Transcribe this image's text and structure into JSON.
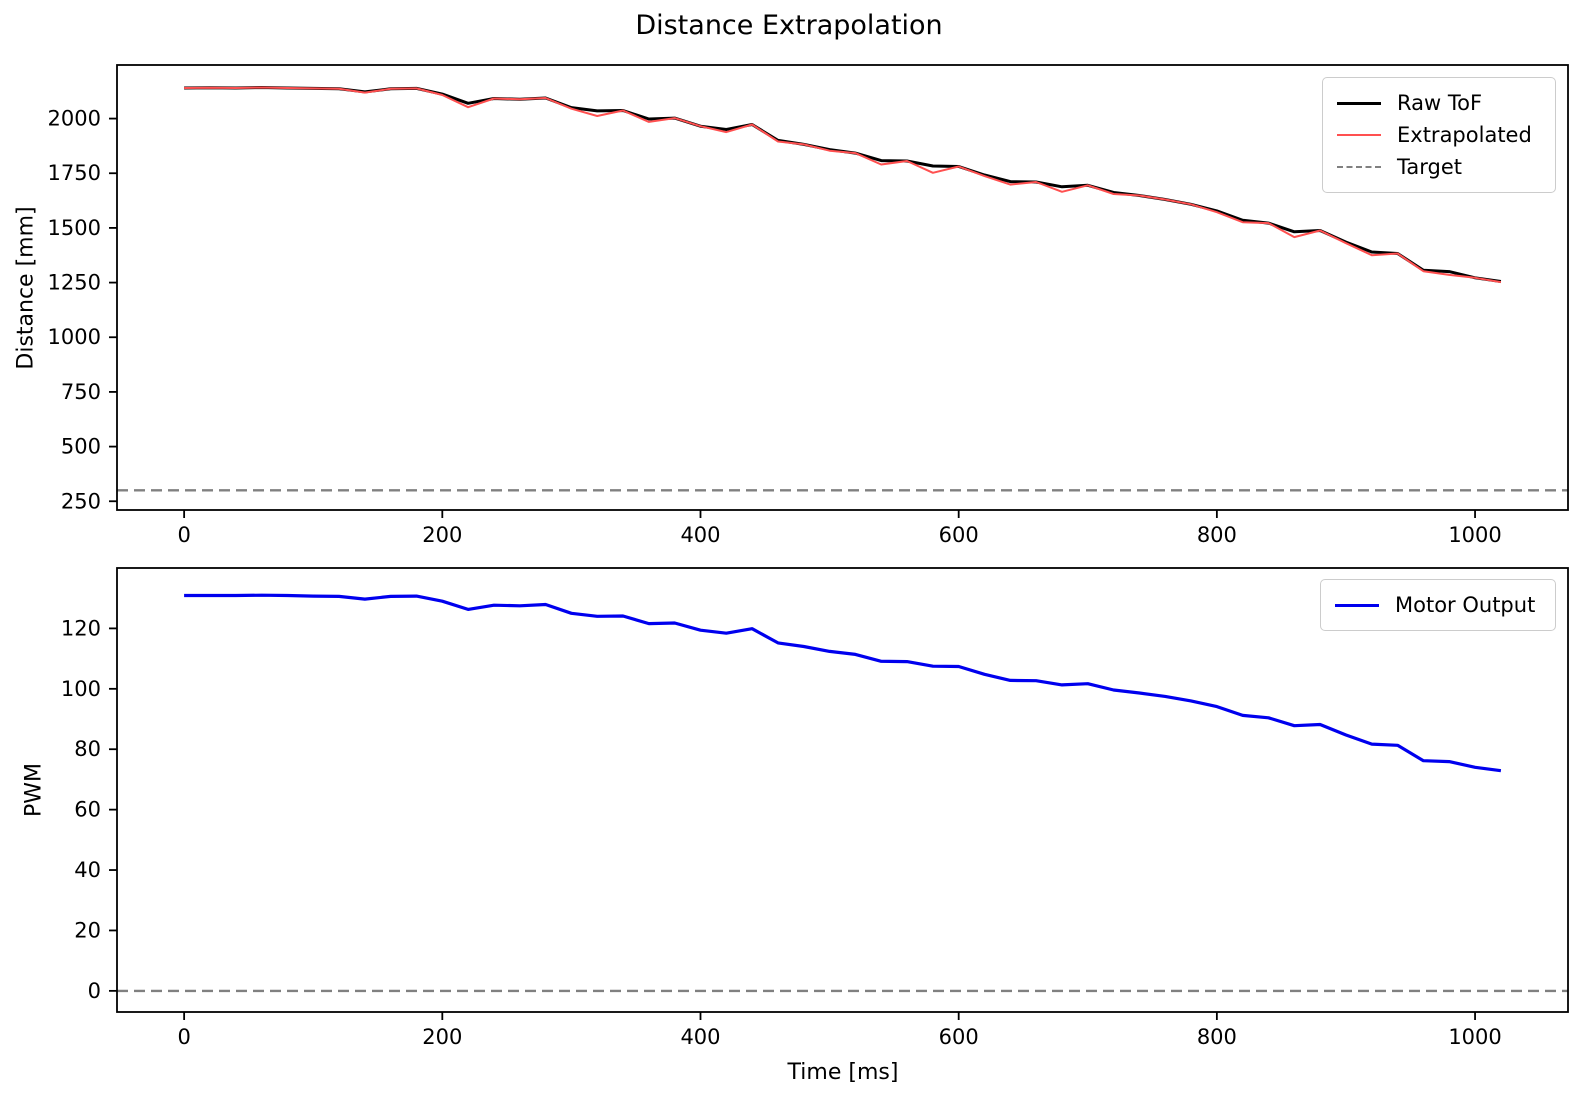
{
  "chart_data": [
    {
      "type": "line",
      "title": "Distance Extrapolation",
      "xlabel": "",
      "ylabel": "Distance [mm]",
      "xlim": [
        -52,
        1072
      ],
      "ylim": [
        210,
        2245
      ],
      "xticks": [
        0,
        200,
        400,
        600,
        800,
        1000
      ],
      "yticks": [
        250,
        500,
        750,
        1000,
        1250,
        1500,
        1750,
        2000
      ],
      "grid": false,
      "legend_position": "upper right",
      "x": [
        0,
        20,
        40,
        60,
        80,
        100,
        120,
        140,
        160,
        180,
        200,
        220,
        240,
        260,
        280,
        300,
        320,
        340,
        360,
        380,
        400,
        420,
        440,
        460,
        480,
        500,
        520,
        540,
        560,
        580,
        600,
        620,
        640,
        660,
        680,
        700,
        720,
        740,
        760,
        780,
        800,
        820,
        840,
        860,
        880,
        900,
        920,
        940,
        960,
        980,
        1000,
        1020
      ],
      "series": [
        {
          "name": "Raw ToF",
          "color": "#000000",
          "style": "solid",
          "width": 3,
          "in_legend": true,
          "values": [
            2140,
            2141,
            2140,
            2142,
            2140,
            2138,
            2136,
            2122,
            2136,
            2138,
            2112,
            2070,
            2092,
            2088,
            2094,
            2050,
            2035,
            2037,
            1998,
            2002,
            1965,
            1950,
            1973,
            1900,
            1882,
            1858,
            1842,
            1808,
            1806,
            1783,
            1781,
            1742,
            1712,
            1710,
            1688,
            1695,
            1662,
            1648,
            1630,
            1608,
            1578,
            1535,
            1522,
            1482,
            1488,
            1435,
            1390,
            1383,
            1306,
            1300,
            1272,
            1255
          ]
        },
        {
          "name": "Extrapolated",
          "color": "#ff5050",
          "style": "solid",
          "width": 2,
          "in_legend": true,
          "values": [
            2140,
            2141,
            2140,
            2142,
            2140,
            2138,
            2136,
            2119,
            2136,
            2138,
            2108,
            2052,
            2092,
            2088,
            2094,
            2045,
            2012,
            2037,
            1985,
            2002,
            1965,
            1938,
            1973,
            1895,
            1882,
            1853,
            1842,
            1790,
            1806,
            1752,
            1781,
            1737,
            1698,
            1710,
            1665,
            1695,
            1655,
            1648,
            1630,
            1608,
            1572,
            1526,
            1522,
            1458,
            1488,
            1430,
            1375,
            1383,
            1302,
            1285,
            1272,
            1252
          ]
        },
        {
          "name": "Target",
          "color": "#808080",
          "style": "dashed",
          "width": 2.4,
          "in_legend": true,
          "const": 300
        }
      ]
    },
    {
      "type": "line",
      "title": "",
      "xlabel": "Time [ms]",
      "ylabel": "PWM",
      "xlim": [
        -52,
        1072
      ],
      "ylim": [
        -7,
        140
      ],
      "xticks": [
        0,
        200,
        400,
        600,
        800,
        1000
      ],
      "yticks": [
        0,
        20,
        40,
        60,
        80,
        100,
        120
      ],
      "grid": false,
      "legend_position": "upper right",
      "x": [
        0,
        20,
        40,
        60,
        80,
        100,
        120,
        140,
        160,
        180,
        200,
        220,
        240,
        260,
        280,
        300,
        320,
        340,
        360,
        380,
        400,
        420,
        440,
        460,
        480,
        500,
        520,
        540,
        560,
        580,
        600,
        620,
        640,
        660,
        680,
        700,
        720,
        740,
        760,
        780,
        800,
        820,
        840,
        860,
        880,
        900,
        920,
        940,
        960,
        980,
        1000,
        1020
      ],
      "series": [
        {
          "name": "Motor Output",
          "color": "#0000ee",
          "style": "solid",
          "width": 3.2,
          "in_legend": true,
          "values": [
            130.9,
            130.9,
            130.9,
            131.0,
            130.9,
            130.7,
            130.6,
            129.7,
            130.6,
            130.7,
            129.0,
            126.3,
            127.7,
            127.5,
            127.9,
            125.0,
            124.0,
            124.1,
            121.6,
            121.8,
            119.4,
            118.4,
            119.9,
            115.2,
            114.0,
            112.4,
            111.4,
            109.1,
            109.0,
            107.5,
            107.4,
            104.8,
            102.8,
            102.7,
            101.3,
            101.7,
            99.6,
            98.6,
            97.5,
            96.0,
            94.1,
            91.2,
            90.4,
            87.8,
            88.2,
            84.7,
            81.7,
            81.3,
            76.2,
            75.9,
            74.0,
            72.9
          ]
        },
        {
          "name": "Zero Line",
          "color": "#808080",
          "style": "dashed",
          "width": 2.4,
          "in_legend": false,
          "const": 0
        }
      ]
    }
  ]
}
